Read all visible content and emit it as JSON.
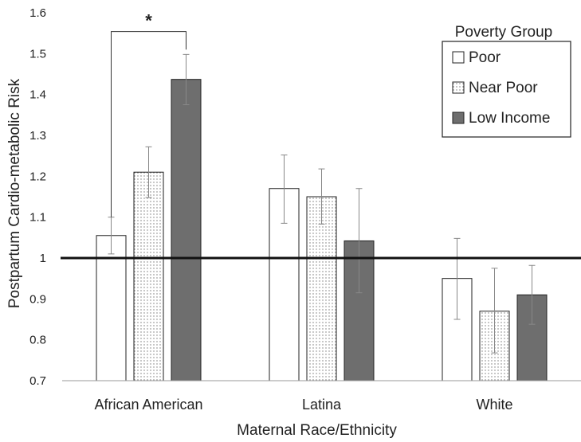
{
  "chart_data": {
    "type": "bar",
    "xlabel": "Maternal Race/Ethnicity",
    "ylabel": "Postpartum Cardio-metabolic Risk",
    "ylim": [
      0.7,
      1.6
    ],
    "yticks": [
      "0.7",
      "0.8",
      "0.9",
      "1",
      "1.1",
      "1.2",
      "1.3",
      "1.4",
      "1.5",
      "1.6"
    ],
    "reference_line": 1.0,
    "grid": false,
    "categories": [
      "African American",
      "Latina",
      "White"
    ],
    "legend": {
      "title": "Poverty  Group",
      "position": "top-right"
    },
    "series": [
      {
        "name": "Poor",
        "fill": "white",
        "values": [
          1.055,
          1.17,
          0.95
        ],
        "err_low": [
          1.01,
          1.085,
          0.85
        ],
        "err_high": [
          1.1,
          1.252,
          1.048
        ]
      },
      {
        "name": "Near Poor",
        "fill": "dotted",
        "values": [
          1.21,
          1.15,
          0.87
        ],
        "err_low": [
          1.148,
          1.083,
          0.768
        ],
        "err_high": [
          1.272,
          1.218,
          0.975
        ]
      },
      {
        "name": "Low Income",
        "fill": "#6e6e6e",
        "values": [
          1.437,
          1.042,
          0.91
        ],
        "err_low": [
          1.375,
          0.915,
          0.838
        ],
        "err_high": [
          1.498,
          1.17,
          0.982
        ]
      }
    ],
    "annotations": [
      {
        "text": "*",
        "category": "African American",
        "from_series": "Poor",
        "to_series": "Low Income"
      }
    ]
  }
}
